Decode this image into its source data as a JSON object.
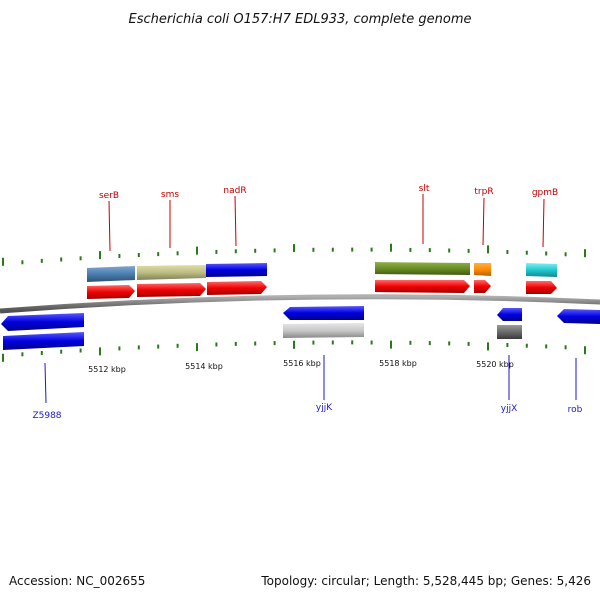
{
  "title": "Escherichia coli O157:H7 EDL933, complete genome",
  "footer": {
    "accession": "Accession: NC_002655",
    "summary": "Topology: circular; Length: 5,528,445 bp; Genes: 5,426"
  },
  "kbp_labels": [
    "5512 kbp",
    "5514 kbp",
    "5516 kbp",
    "5518 kbp",
    "5520 kbp"
  ],
  "top_genes": [
    "serB",
    "sms",
    "nadR",
    "slt",
    "trpR",
    "gpmB"
  ],
  "bottom_genes": [
    "Z5988",
    "yjjK",
    "yjjX",
    "rob"
  ],
  "colors": {
    "backbone": "#808080",
    "tick": "#2a7a1a",
    "cds": "#ff0000",
    "forward_gene": "#0000ee",
    "reverse_gene": "#0000ee",
    "top_label": "#c00000",
    "bottom_label": "#1a1acc"
  }
}
